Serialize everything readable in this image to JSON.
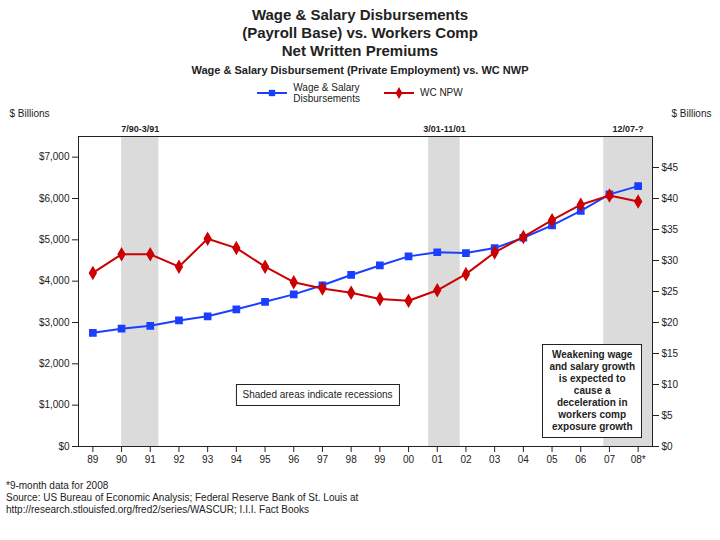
{
  "chart_data": {
    "type": "line",
    "title": "Wage & Salary Disbursements\n(Payroll Base) vs. Workers Comp\nNet Written Premiums",
    "subtitle": "Wage & Salary Disbursement (Private Employment) vs. WC NWP",
    "ylabel": "$ Billions",
    "y2label": "$ Billions",
    "categories": [
      "89",
      "90",
      "91",
      "92",
      "93",
      "94",
      "95",
      "96",
      "97",
      "98",
      "99",
      "00",
      "01",
      "02",
      "03",
      "04",
      "05",
      "06",
      "07",
      "08*"
    ],
    "series": [
      {
        "name": "Wage & Salary\nDisbursements",
        "color": "#1a3fff",
        "marker": "square",
        "values": [
          2750,
          2850,
          2920,
          3050,
          3150,
          3320,
          3500,
          3680,
          3900,
          4150,
          4380,
          4600,
          4700,
          4680,
          4800,
          5050,
          5350,
          5700,
          6100,
          6300
        ]
      },
      {
        "name": "WC NPW",
        "color": "#cc0000",
        "marker": "diamond",
        "axis": "y2",
        "values": [
          28.0,
          31.0,
          31.0,
          29.0,
          33.5,
          32.0,
          29.0,
          26.5,
          25.5,
          24.8,
          23.8,
          23.5,
          25.2,
          27.8,
          31.3,
          33.8,
          36.5,
          39.0,
          40.5,
          39.5
        ]
      }
    ],
    "ylim": [
      0,
      7500
    ],
    "yticks": [
      {
        "value": 0,
        "label": "$0"
      },
      {
        "value": 1000,
        "label": "$1,000"
      },
      {
        "value": 2000,
        "label": "$2,000"
      },
      {
        "value": 3000,
        "label": "$3,000"
      },
      {
        "value": 4000,
        "label": "$4,000"
      },
      {
        "value": 5000,
        "label": "$5,000"
      },
      {
        "value": 6000,
        "label": "$6,000"
      },
      {
        "value": 7000,
        "label": "$7,000"
      }
    ],
    "y2lim": [
      0,
      50
    ],
    "y2ticks": [
      {
        "value": 0,
        "label": "$0"
      },
      {
        "value": 5,
        "label": "$5"
      },
      {
        "value": 10,
        "label": "$10"
      },
      {
        "value": 15,
        "label": "$15"
      },
      {
        "value": 20,
        "label": "$20"
      },
      {
        "value": 25,
        "label": "$25"
      },
      {
        "value": 30,
        "label": "$30"
      },
      {
        "value": 35,
        "label": "$35"
      },
      {
        "value": 40,
        "label": "$40"
      },
      {
        "value": 45,
        "label": "$45"
      }
    ],
    "recessions": [
      {
        "start": 1.0,
        "end": 2.3,
        "label": "7/90-3/91"
      },
      {
        "start": 11.7,
        "end": 12.8,
        "label": "3/01-11/01"
      },
      {
        "start": 17.8,
        "end": 19.5,
        "label": "12/07-?"
      }
    ],
    "annotations": [
      "Shaded areas indicate recessions",
      "Weakening wage\nand salary growth\nis expected to\ncause a\ndeceleration in\nworkers comp\nexposure growth"
    ],
    "footer": [
      "*9-month data for 2008",
      "Source: US Bureau of Economic Analysis; Federal Reserve Bank of St. Louis at",
      "http://research.stlouisfed.org/fred2/series/WASCUR; I.I.I. Fact Books"
    ]
  }
}
